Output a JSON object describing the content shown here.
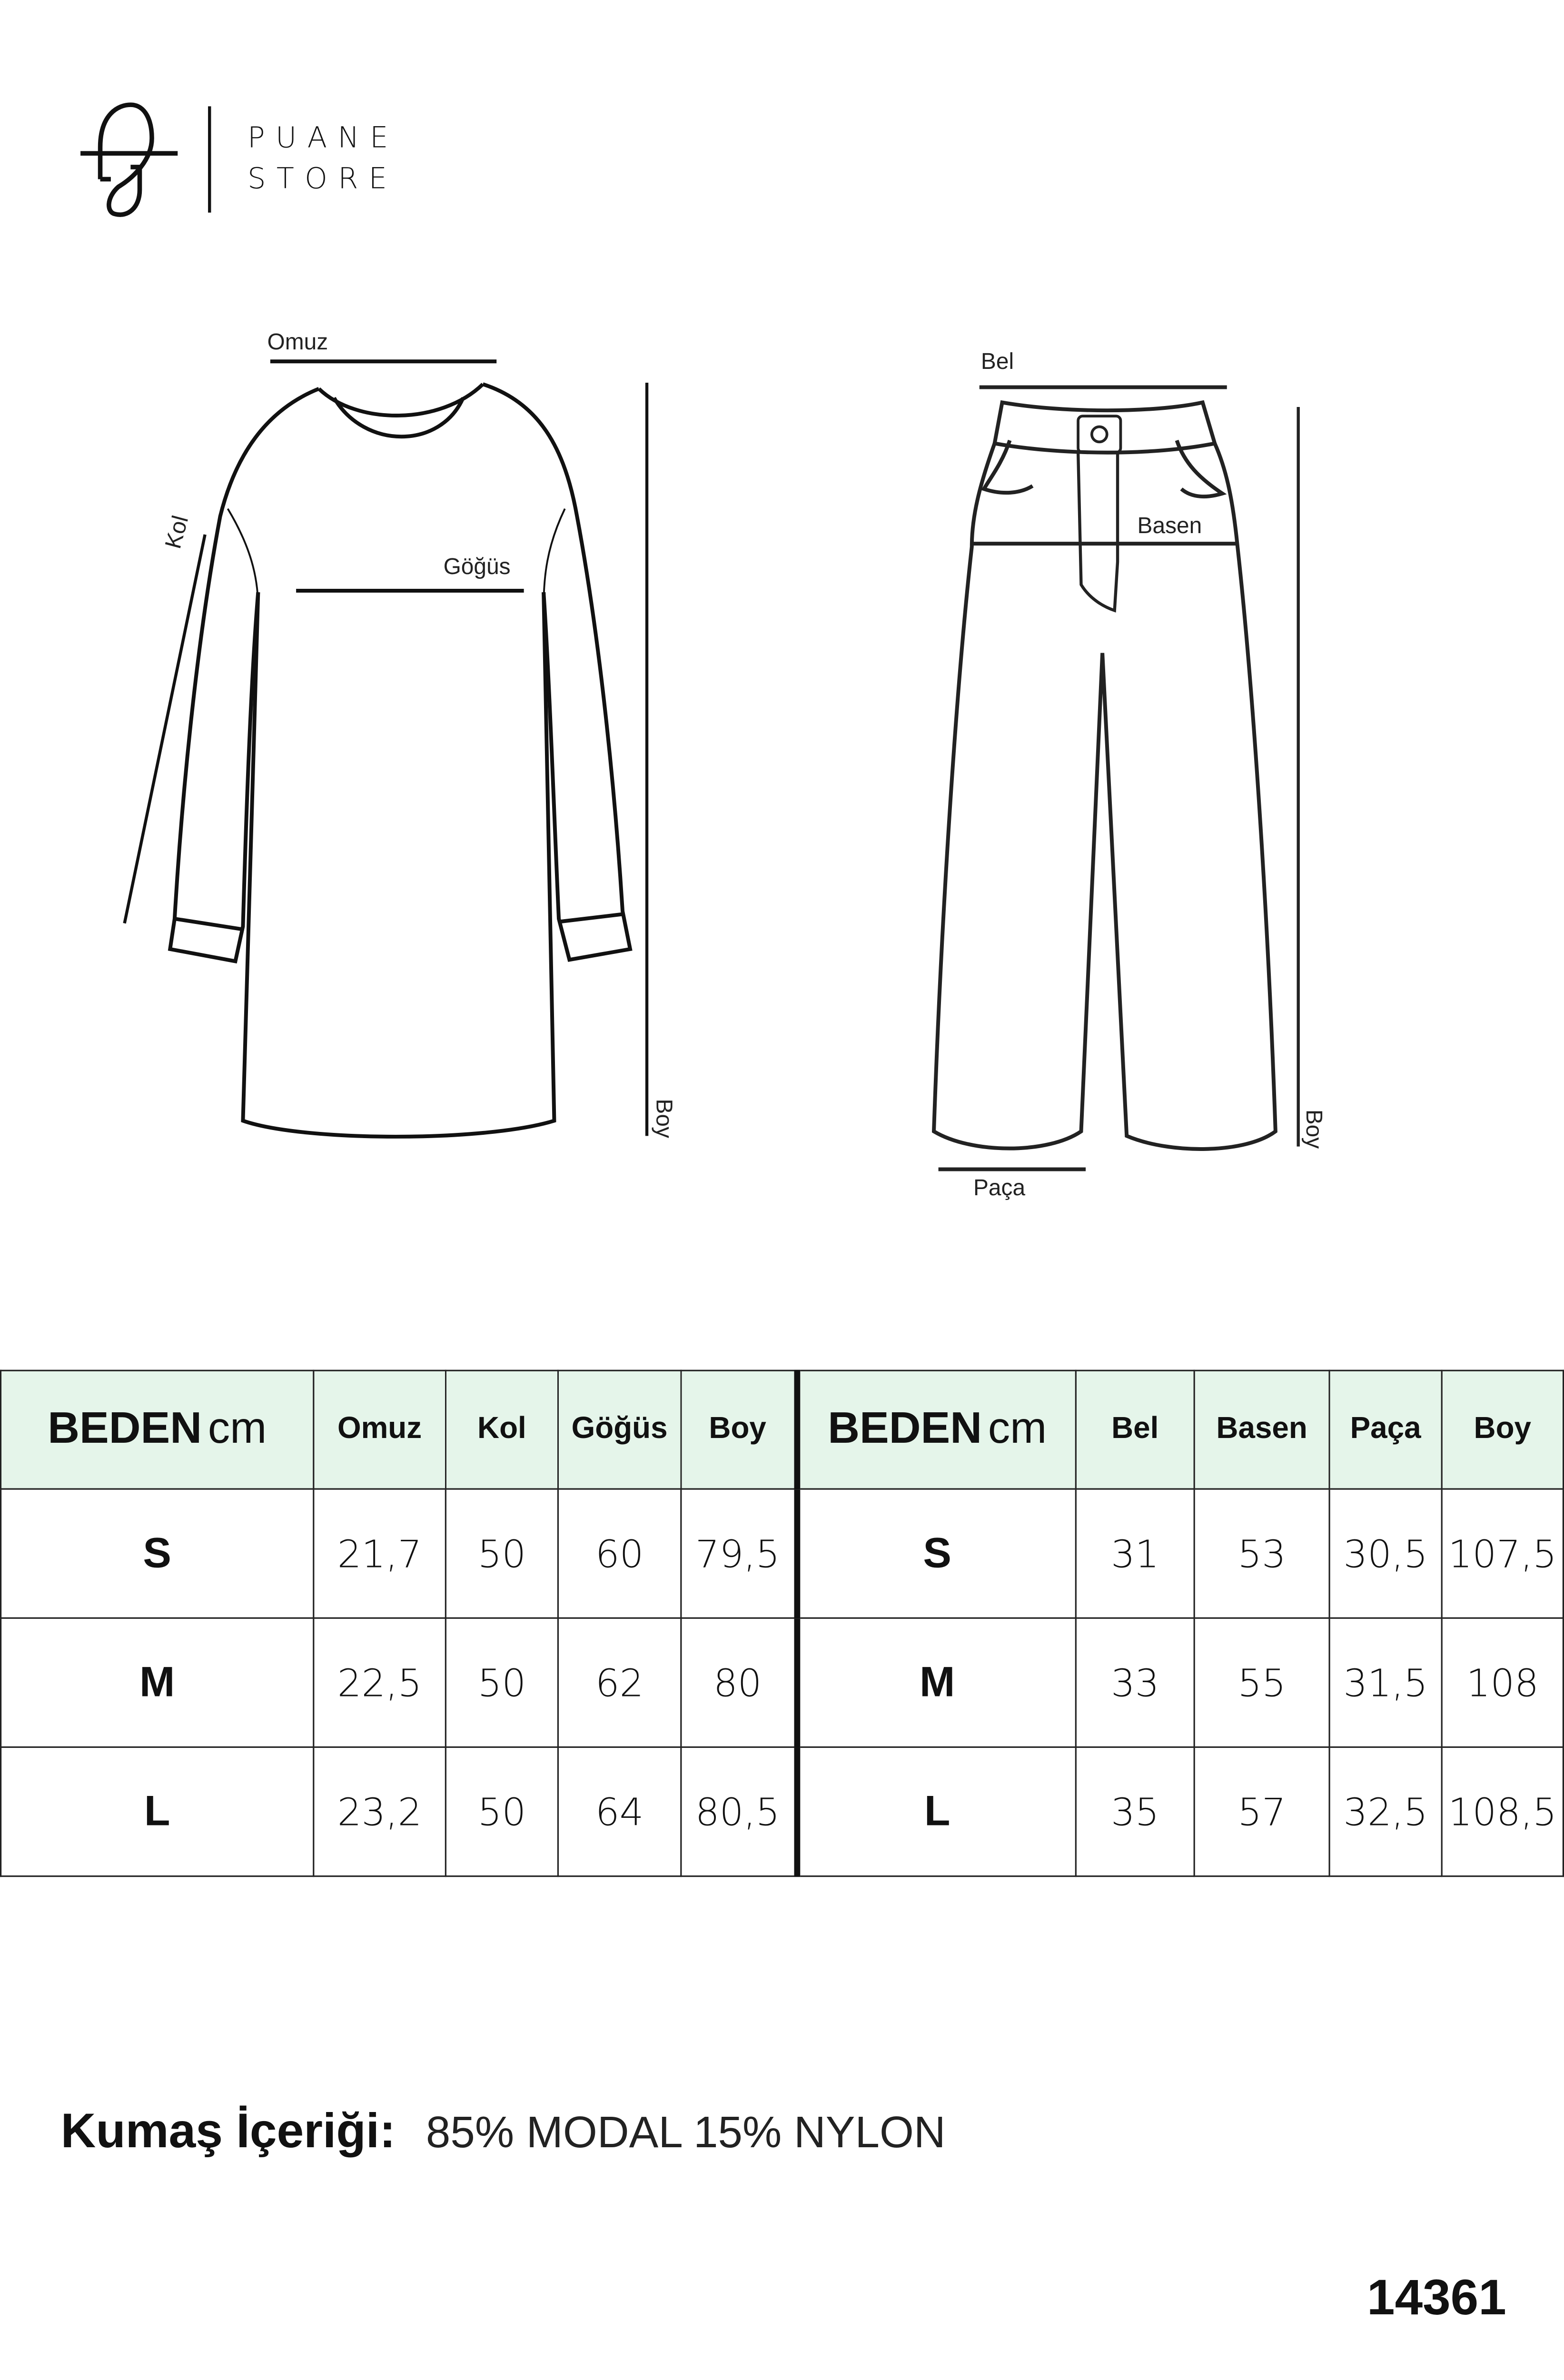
{
  "brand": {
    "line1": "PUANE",
    "line2": "STORE"
  },
  "top_labels": {
    "shoulder": "Omuz",
    "sleeve": "Kol",
    "chest": "Göğüs",
    "length": "Boy"
  },
  "pants_labels": {
    "waist": "Bel",
    "hip": "Basen",
    "hem": "Paça",
    "length": "Boy"
  },
  "table": {
    "top": {
      "size_header": "BEDEN",
      "unit": "cm",
      "columns": [
        "Omuz",
        "Kol",
        "Göğüs",
        "Boy"
      ],
      "rows": [
        {
          "size": "S",
          "values": [
            "21,7",
            "50",
            "60",
            "79,5"
          ]
        },
        {
          "size": "M",
          "values": [
            "22,5",
            "50",
            "62",
            "80"
          ]
        },
        {
          "size": "L",
          "values": [
            "23,2",
            "50",
            "64",
            "80,5"
          ]
        }
      ]
    },
    "pants": {
      "size_header": "BEDEN",
      "unit": "cm",
      "columns": [
        "Bel",
        "Basen",
        "Paça",
        "Boy"
      ],
      "rows": [
        {
          "size": "S",
          "values": [
            "31",
            "53",
            "30,5",
            "107,5"
          ]
        },
        {
          "size": "M",
          "values": [
            "33",
            "55",
            "31,5",
            "108"
          ]
        },
        {
          "size": "L",
          "values": [
            "35",
            "57",
            "32,5",
            "108,5"
          ]
        }
      ]
    },
    "header_color": "#e5f5ea"
  },
  "fabric": {
    "label": "Kumaş İçeriği:",
    "value": "85% MODAL 15% NYLON"
  },
  "product_code": "14361"
}
